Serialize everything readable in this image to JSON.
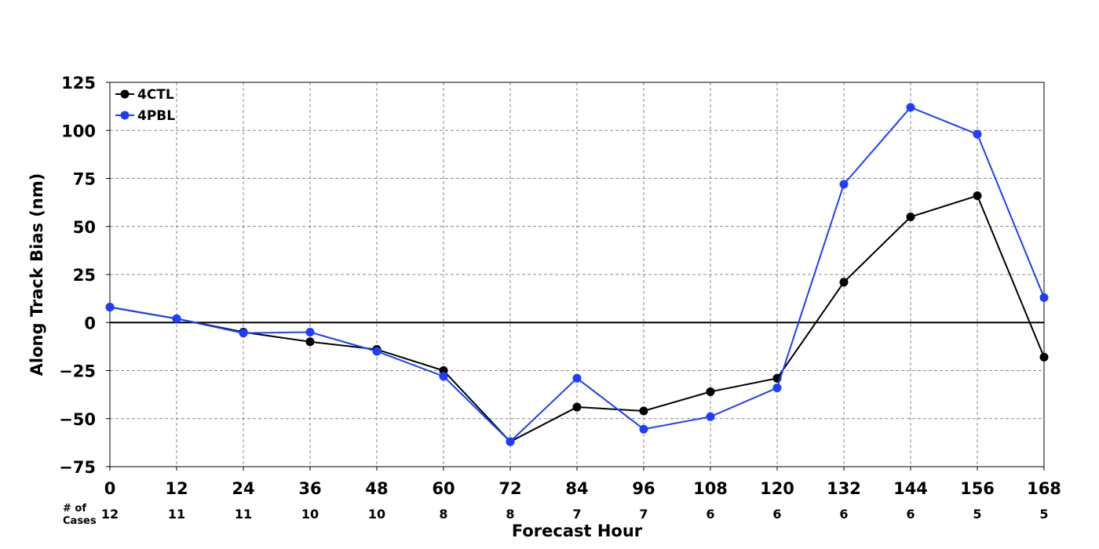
{
  "chart_data": {
    "type": "line",
    "xlabel": "Forecast Hour",
    "ylabel": "Along Track Bias (nm)",
    "x": [
      0,
      12,
      24,
      36,
      48,
      60,
      72,
      84,
      96,
      108,
      120,
      132,
      144,
      156,
      168
    ],
    "x_tick_labels": [
      "0",
      "12",
      "24",
      "36",
      "48",
      "60",
      "72",
      "84",
      "96",
      "108",
      "120",
      "132",
      "144",
      "156",
      "168"
    ],
    "y_tick_labels": [
      "125",
      "100",
      "75",
      "50",
      "25",
      "0",
      "−25",
      "−50",
      "−75"
    ],
    "y_ticks": [
      125,
      100,
      75,
      50,
      25,
      0,
      -25,
      -50,
      -75
    ],
    "xlim": [
      0,
      168
    ],
    "ylim": [
      -75,
      125
    ],
    "grid": true,
    "grid_style": "dashed",
    "zero_line": true,
    "legend_position": "top-left",
    "series": [
      {
        "name": "4CTL",
        "color": "#000000",
        "values": [
          8,
          2,
          -5,
          -10,
          -14,
          -25,
          -62,
          -44,
          -46,
          -36,
          -29,
          21,
          55,
          66,
          -18
        ]
      },
      {
        "name": "4PBL",
        "color": "#1f3dff",
        "values": [
          8,
          2,
          -5.5,
          -5,
          -15,
          -28,
          -62,
          -29,
          -55.5,
          -49,
          -34,
          72,
          112,
          98,
          13
        ]
      }
    ],
    "cases": {
      "label_line1": "# of",
      "label_line2": "Cases",
      "values": [
        "12",
        "11",
        "11",
        "10",
        "10",
        "8",
        "8",
        "7",
        "7",
        "6",
        "6",
        "6",
        "6",
        "5",
        "5"
      ]
    }
  }
}
